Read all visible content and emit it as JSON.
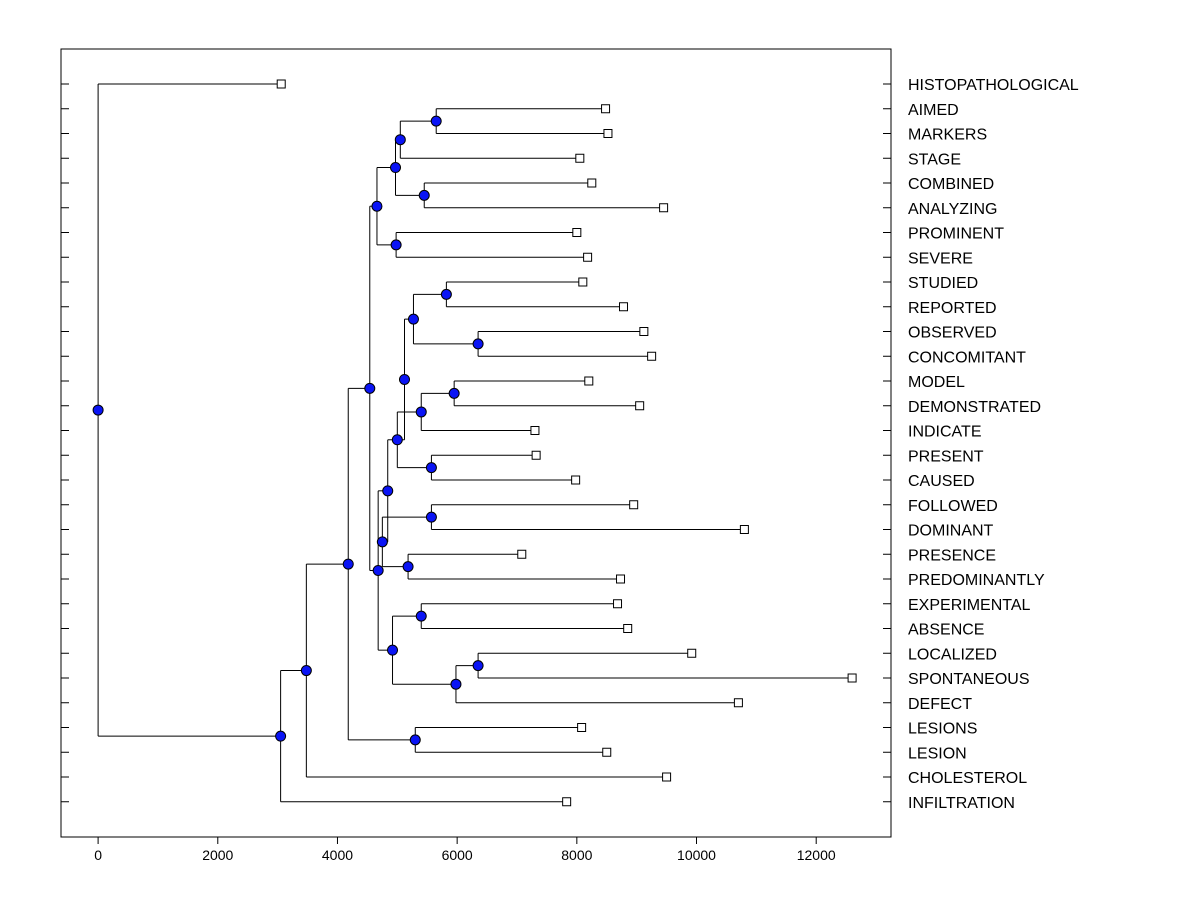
{
  "chart_data": {
    "type": "dendrogram",
    "title": "",
    "xlabel": "",
    "ylabel": "",
    "xlim": [
      -620,
      13250
    ],
    "x_ticks": [
      0,
      2000,
      4000,
      6000,
      8000,
      10000,
      12000
    ],
    "x_tick_labels": [
      "0",
      "2000",
      "4000",
      "6000",
      "8000",
      "10000",
      "12000"
    ],
    "grid": false,
    "leaves": [
      {
        "id": "HISTOPATHOLOGICAL",
        "value": 3060
      },
      {
        "id": "AIMED",
        "value": 8480
      },
      {
        "id": "MARKERS",
        "value": 8520
      },
      {
        "id": "STAGE",
        "value": 8050
      },
      {
        "id": "COMBINED",
        "value": 8250
      },
      {
        "id": "ANALYZING",
        "value": 9450
      },
      {
        "id": "PROMINENT",
        "value": 8000
      },
      {
        "id": "SEVERE",
        "value": 8180
      },
      {
        "id": "STUDIED",
        "value": 8100
      },
      {
        "id": "REPORTED",
        "value": 8780
      },
      {
        "id": "OBSERVED",
        "value": 9120
      },
      {
        "id": "CONCOMITANT",
        "value": 9250
      },
      {
        "id": "MODEL",
        "value": 8200
      },
      {
        "id": "DEMONSTRATED",
        "value": 9050
      },
      {
        "id": "INDICATE",
        "value": 7300
      },
      {
        "id": "PRESENT",
        "value": 7320
      },
      {
        "id": "CAUSED",
        "value": 7980
      },
      {
        "id": "FOLLOWED",
        "value": 8950
      },
      {
        "id": "DOMINANT",
        "value": 10800
      },
      {
        "id": "PRESENCE",
        "value": 7080
      },
      {
        "id": "PREDOMINANTLY",
        "value": 8730
      },
      {
        "id": "EXPERIMENTAL",
        "value": 8680
      },
      {
        "id": "ABSENCE",
        "value": 8850
      },
      {
        "id": "LOCALIZED",
        "value": 9920
      },
      {
        "id": "SPONTANEOUS",
        "value": 12600
      },
      {
        "id": "DEFECT",
        "value": 10700
      },
      {
        "id": "LESIONS",
        "value": 8080
      },
      {
        "id": "LESION",
        "value": 8500
      },
      {
        "id": "CHOLESTEROL",
        "value": 9500
      },
      {
        "id": "INFILTRATION",
        "value": 7830
      }
    ],
    "nodes": [
      {
        "id": "n_aimed_markers",
        "value": 5650,
        "children": [
          "AIMED",
          "MARKERS"
        ]
      },
      {
        "id": "n_am_stage",
        "value": 5050,
        "children": [
          "n_aimed_markers",
          "STAGE"
        ]
      },
      {
        "id": "n_comb_anal",
        "value": 5450,
        "children": [
          "COMBINED",
          "ANALYZING"
        ]
      },
      {
        "id": "n_ams_ca",
        "value": 4970,
        "children": [
          "n_am_stage",
          "n_comb_anal"
        ]
      },
      {
        "id": "n_prom_sev",
        "value": 4980,
        "children": [
          "PROMINENT",
          "SEVERE"
        ]
      },
      {
        "id": "n_top_group",
        "value": 4660,
        "children": [
          "n_ams_ca",
          "n_prom_sev"
        ]
      },
      {
        "id": "n_stud_rep",
        "value": 5820,
        "children": [
          "STUDIED",
          "REPORTED"
        ]
      },
      {
        "id": "n_obs_conc",
        "value": 6350,
        "children": [
          "OBSERVED",
          "CONCOMITANT"
        ]
      },
      {
        "id": "n_sr_oc",
        "value": 5270,
        "children": [
          "n_stud_rep",
          "n_obs_conc"
        ]
      },
      {
        "id": "n_model_dem",
        "value": 5950,
        "children": [
          "MODEL",
          "DEMONSTRATED"
        ]
      },
      {
        "id": "n_md_ind",
        "value": 5400,
        "children": [
          "n_model_dem",
          "INDICATE"
        ]
      },
      {
        "id": "n_pres_caus",
        "value": 5570,
        "children": [
          "PRESENT",
          "CAUSED"
        ]
      },
      {
        "id": "n_mdi_pc",
        "value": 5000,
        "children": [
          "n_md_ind",
          "n_pres_caus"
        ]
      },
      {
        "id": "n_sroc_mdipc",
        "value": 5120,
        "children": [
          "n_sr_oc",
          "n_mdi_pc"
        ]
      },
      {
        "id": "n_foll_dom",
        "value": 5570,
        "children": [
          "FOLLOWED",
          "DOMINANT"
        ]
      },
      {
        "id": "n_pres_pred",
        "value": 5180,
        "children": [
          "PRESENCE",
          "PREDOMINANTLY"
        ]
      },
      {
        "id": "n_fd_pp",
        "value": 4750,
        "children": [
          "n_foll_dom",
          "n_pres_pred"
        ]
      },
      {
        "id": "n_mid_a",
        "value": 4840,
        "children": [
          "n_mdi_pc",
          "n_fd_pp"
        ]
      },
      {
        "id": "n_exp_abs",
        "value": 5400,
        "children": [
          "EXPERIMENTAL",
          "ABSENCE"
        ]
      },
      {
        "id": "n_loc_spon",
        "value": 6350,
        "children": [
          "LOCALIZED",
          "SPONTANEOUS"
        ]
      },
      {
        "id": "n_ls_def",
        "value": 5980,
        "children": [
          "n_loc_spon",
          "DEFECT"
        ]
      },
      {
        "id": "n_ea_lsd",
        "value": 4920,
        "children": [
          "n_exp_abs",
          "n_ls_def"
        ]
      },
      {
        "id": "n_mid_b",
        "value": 4680,
        "children": [
          "n_mid_a",
          "n_ea_lsd"
        ]
      },
      {
        "id": "n_upper",
        "value": 4540,
        "children": [
          "n_top_group",
          "n_mid_b"
        ]
      },
      {
        "id": "n_les_lesion",
        "value": 5300,
        "children": [
          "LESIONS",
          "LESION"
        ]
      },
      {
        "id": "n_up_les",
        "value": 4180,
        "children": [
          "n_upper",
          "n_les_lesion"
        ]
      },
      {
        "id": "n_up_chol",
        "value": 3480,
        "children": [
          "n_up_les",
          "CHOLESTEROL"
        ]
      },
      {
        "id": "n_up_inf",
        "value": 3050,
        "children": [
          "n_up_chol",
          "INFILTRATION"
        ]
      },
      {
        "id": "n_root",
        "value": 0,
        "children": [
          "HISTOPATHOLOGICAL",
          "n_up_inf"
        ]
      }
    ]
  }
}
